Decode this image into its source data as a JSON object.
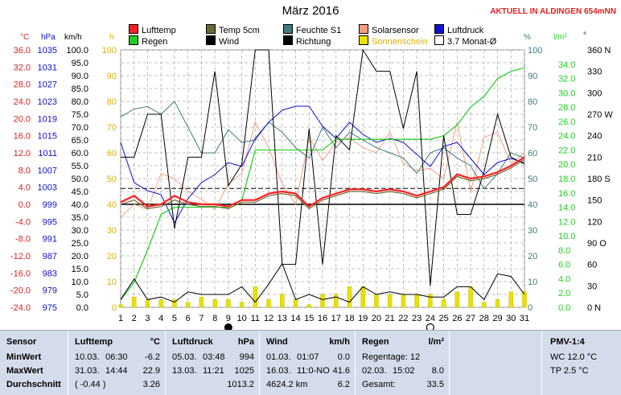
{
  "header": {
    "title": "März 2016",
    "alert": "AKTUELL IN ALDINGEN 654mNN"
  },
  "legend": [
    {
      "label": "Lufttemp",
      "color": "#ff2020"
    },
    {
      "label": "Temp 5cm",
      "color": "#6b6b3a"
    },
    {
      "label": "Feuchte S1",
      "color": "#3c7d7d"
    },
    {
      "label": "Solarsensor",
      "color": "#f4a080"
    },
    {
      "label": "Luftdruck",
      "color": "#1010d0"
    },
    {
      "label": "Regen",
      "color": "#20d020"
    },
    {
      "label": "Wind",
      "color": "#000000"
    },
    {
      "label": "Richtung",
      "color": "#000000"
    },
    {
      "label": "Sonnenschein",
      "color": "#e8e000"
    },
    {
      "label": "3.7 Monat-Ø",
      "color": "#ffffff"
    }
  ],
  "axis_units": {
    "temp": "°C",
    "pressure": "hPa",
    "wind": "km/h",
    "sun": "h",
    "humidity": "%",
    "rain": "l/m²",
    "direction": "°"
  },
  "chart_data": {
    "type": "line",
    "x": [
      1,
      2,
      3,
      4,
      5,
      6,
      7,
      8,
      9,
      10,
      11,
      12,
      13,
      14,
      15,
      16,
      17,
      18,
      19,
      20,
      21,
      22,
      23,
      24,
      25,
      26,
      27,
      28,
      29,
      30,
      31
    ],
    "x_ticks": [
      "1",
      "2",
      "3",
      "4",
      "5",
      "6",
      "7",
      "8",
      "9",
      "10",
      "11",
      "12",
      "13",
      "14",
      "15",
      "16",
      "17",
      "18",
      "19",
      "20",
      "21",
      "22",
      "23",
      "24",
      "25",
      "26",
      "27",
      "28",
      "29",
      "30",
      "31"
    ],
    "axes": {
      "temp": {
        "min": -24.0,
        "max": 36.0,
        "ticks": [
          "36.0",
          "32.0",
          "28.0",
          "24.0",
          "20.0",
          "16.0",
          "12.0",
          "8.0",
          "4.0",
          "0.0",
          "-4.0",
          "-8.0",
          "-12.0",
          "-16.0",
          "-20.0",
          "-24.0"
        ]
      },
      "pressure": {
        "min": 975,
        "max": 1039,
        "ticks": [
          "1035",
          "1031",
          "1027",
          "1023",
          "1019",
          "1015",
          "1011",
          "1007",
          "1003",
          "999",
          "995",
          "991",
          "987",
          "983",
          "979",
          "975"
        ]
      },
      "wind": {
        "min": 0,
        "max": 100,
        "ticks": [
          "100.0",
          "95.0",
          "90.0",
          "85.0",
          "80.0",
          "75.0",
          "70.0",
          "65.0",
          "60.0",
          "55.0",
          "50.0",
          "45.0",
          "40.0",
          "35.0",
          "30.0",
          "25.0",
          "20.0",
          "15.0",
          "10.0",
          "5.0",
          "0.0"
        ]
      },
      "sun": {
        "min": 0,
        "max": 100,
        "ticks": [
          "100",
          "90",
          "80",
          "70",
          "60",
          "50",
          "40",
          "30",
          "20",
          "10",
          "0"
        ]
      },
      "humidity": {
        "min": 0,
        "max": 100,
        "ticks": [
          "100",
          "90",
          "80",
          "70",
          "60",
          "50",
          "40",
          "30",
          "20",
          "10",
          "0"
        ]
      },
      "rain": {
        "min": 0,
        "max": 36,
        "ticks": [
          "34.0",
          "32.0",
          "30.0",
          "28.0",
          "26.0",
          "24.0",
          "22.0",
          "20.0",
          "18.0",
          "16.0",
          "14.0",
          "12.0",
          "10.0",
          "8.0",
          "6.0",
          "4.0",
          "2.0",
          "0.0"
        ]
      },
      "direction": {
        "min": 0,
        "max": 360,
        "ticks": [
          "360 N",
          "330",
          "300",
          "270 W",
          "240",
          "210",
          "180 S",
          "150",
          "120",
          "90 O",
          "60",
          "30",
          "0 N"
        ]
      }
    },
    "series": [
      {
        "name": "Lufttemp",
        "axis": "temp",
        "values": [
          0.5,
          2.0,
          -0.5,
          0.0,
          2.0,
          0.5,
          0.0,
          0.0,
          -0.5,
          1.0,
          1.0,
          2.5,
          3.0,
          2.5,
          -0.5,
          1.5,
          2.5,
          3.5,
          3.5,
          3.0,
          3.5,
          3.0,
          2.0,
          3.0,
          4.0,
          7.0,
          6.0,
          6.5,
          7.5,
          9.0,
          11.0
        ]
      },
      {
        "name": "Temp 5cm",
        "axis": "temp",
        "values": [
          0.0,
          1.0,
          -1.0,
          -0.5,
          1.0,
          0.0,
          -0.5,
          -0.5,
          -1.0,
          0.5,
          0.5,
          2.0,
          2.5,
          2.0,
          -1.0,
          1.0,
          2.0,
          3.0,
          3.0,
          2.5,
          3.0,
          2.5,
          1.5,
          2.5,
          3.5,
          6.5,
          5.5,
          6.0,
          7.0,
          8.5,
          10.5
        ]
      },
      {
        "name": "Feuchte S1",
        "axis": "humidity",
        "values": [
          74,
          77,
          78,
          75,
          80,
          70,
          60,
          60,
          69,
          64,
          65,
          72,
          68,
          62,
          58,
          70,
          62,
          68,
          65,
          62,
          60,
          58,
          52,
          60,
          62,
          58,
          55,
          46,
          52,
          60,
          58
        ]
      },
      {
        "name": "Solarsensor",
        "axis": "humidity",
        "values": [
          35,
          40,
          38,
          52,
          50,
          45,
          42,
          38,
          48,
          52,
          72,
          62,
          48,
          40,
          66,
          57,
          64,
          66,
          62,
          60,
          68,
          56,
          53,
          54,
          50,
          72,
          45,
          66,
          68,
          56,
          60
        ]
      },
      {
        "name": "Luftdruck",
        "axis": "pressure",
        "values": [
          1016,
          1006,
          1004,
          1003,
          996,
          1002,
          1006,
          1008,
          1011,
          1010,
          1017,
          1021,
          1024,
          1025,
          1025,
          1020,
          1017,
          1021,
          1018,
          1016,
          1017,
          1016,
          1013,
          1010,
          1015,
          1016,
          1012,
          1008,
          1011,
          1012,
          1011
        ]
      },
      {
        "name": "Regen",
        "axis": "rain",
        "values": [
          1.0,
          3.5,
          8.0,
          13.0,
          14.0,
          14.0,
          14.0,
          14.0,
          14.0,
          15.0,
          22.0,
          22.0,
          22.0,
          22.0,
          22.0,
          22.0,
          23.5,
          23.5,
          23.5,
          23.5,
          23.5,
          23.5,
          23.5,
          23.5,
          24.0,
          25.5,
          28.0,
          29.5,
          32.0,
          33.0,
          33.5
        ]
      },
      {
        "name": "Wind",
        "axis": "wind",
        "values": [
          3,
          11,
          3,
          4,
          2,
          6,
          5,
          5,
          5,
          8,
          2,
          9,
          17,
          3,
          5,
          3,
          4,
          2,
          8,
          5,
          6,
          5,
          5,
          4,
          4,
          8,
          8,
          3,
          13,
          12,
          5
        ]
      },
      {
        "name": "Richtung",
        "axis": "direction",
        "values": [
          210,
          210,
          270,
          270,
          110,
          210,
          210,
          330,
          170,
          200,
          360,
          360,
          60,
          60,
          250,
          60,
          240,
          220,
          360,
          330,
          330,
          250,
          330,
          30,
          240,
          130,
          130,
          190,
          270,
          210,
          200
        ]
      },
      {
        "name": "Sonnenschein",
        "axis": "sun",
        "values": [
          1,
          4,
          3,
          3,
          3,
          2,
          4,
          3,
          3,
          2,
          8,
          3,
          5,
          3,
          1,
          5,
          5,
          8,
          8,
          5,
          5,
          5,
          5,
          5,
          3,
          6,
          8,
          2,
          3,
          6,
          6
        ]
      }
    ],
    "average_line": {
      "name": "3.7 Monat-Ø",
      "axis": "temp",
      "value": 3.7
    }
  },
  "table": {
    "sensor": {
      "header": "Sensor",
      "rows": [
        "MinWert",
        "MaxWert",
        "Durchschnitt"
      ]
    },
    "lufttemp": {
      "header": "Lufttemp",
      "unit": "°C",
      "rows": [
        [
          "10.03.",
          "06:30",
          "-6.2"
        ],
        [
          "31.03.",
          "14:44",
          "22.9"
        ],
        [
          "( -0.44 )",
          "",
          "3.26"
        ]
      ]
    },
    "luftdruck": {
      "header": "Luftdruck",
      "unit": "hPa",
      "rows": [
        [
          "05.03.",
          "03:48",
          "994"
        ],
        [
          "13.03.",
          "11:21",
          "1025"
        ],
        [
          "",
          "",
          "1013.2"
        ]
      ]
    },
    "wind": {
      "header": "Wind",
      "unit": "km/h",
      "rows": [
        [
          "01.03.",
          "01:07",
          "0.0"
        ],
        [
          "16.03.",
          "11:0-NO",
          "41.6"
        ],
        [
          "4624.2 km",
          "",
          "6.2"
        ]
      ]
    },
    "regen": {
      "header": "Regen",
      "unit": "l/m²",
      "rows": [
        [
          "Regentage: 12",
          "",
          ""
        ],
        [
          "02.03.",
          "15:02",
          "8.0"
        ],
        [
          "Gesamt:",
          "",
          "33.5"
        ]
      ]
    },
    "pmv": {
      "header": "PMV-1:4",
      "rows": [
        "WC 12.0 °C",
        "TP 2.5 °C"
      ]
    }
  }
}
